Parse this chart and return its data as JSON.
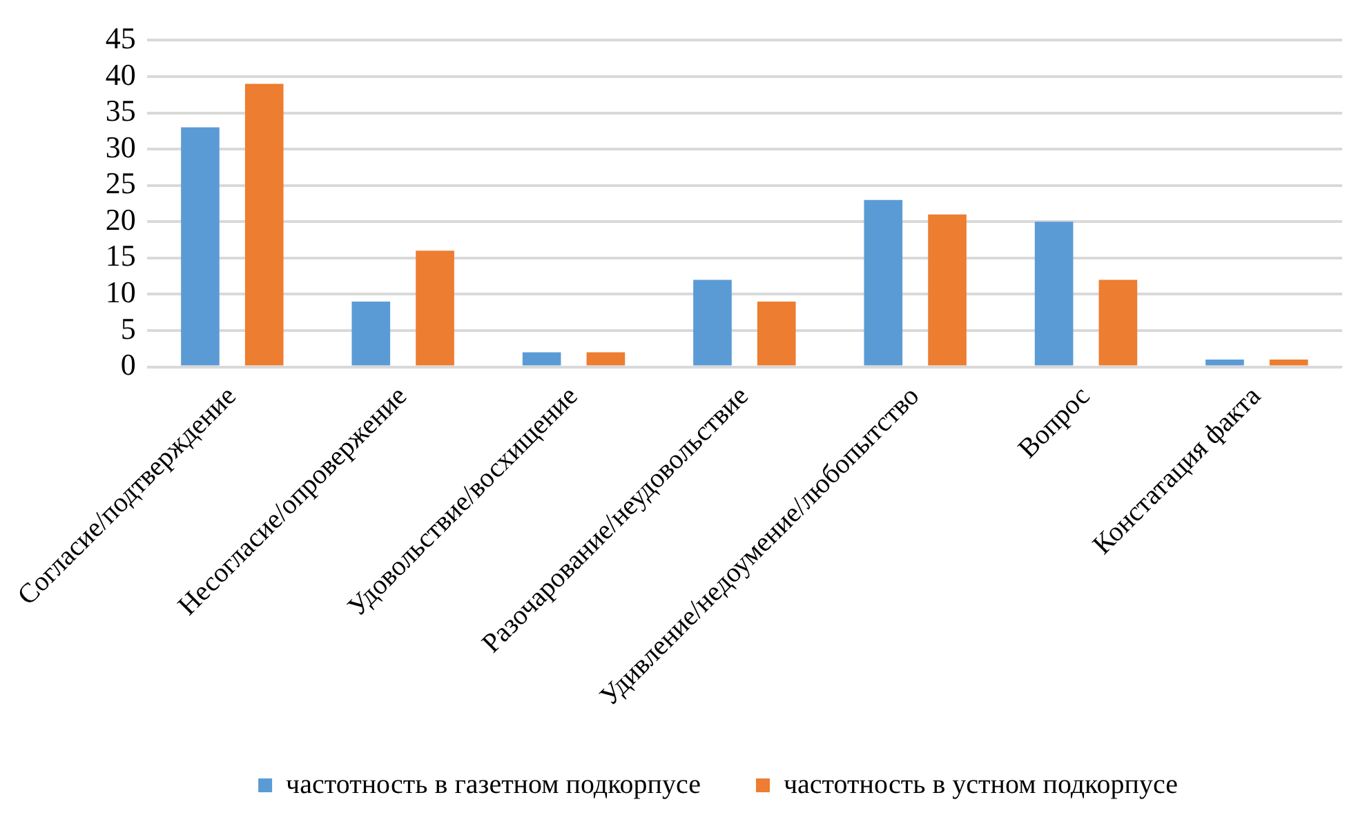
{
  "chart_data": {
    "type": "bar",
    "categories": [
      "Согласие/подтверждение",
      "Несогласие/опровержение",
      "Удовольствие/восхищение",
      "Разочарование/неудовольствие",
      "Удивление/недоумение/любопытство",
      "Вопрос",
      "Констатация факта"
    ],
    "series": [
      {
        "name": "частотность в газетном подкорпусе",
        "color": "#5b9bd5",
        "values": [
          33,
          9,
          2,
          12,
          23,
          20,
          1
        ]
      },
      {
        "name": "частотность в устном подкорпусе",
        "color": "#ed7d31",
        "values": [
          39,
          16,
          2,
          9,
          21,
          12,
          1
        ]
      }
    ],
    "ylim": [
      0,
      45
    ],
    "yticks": [
      0,
      5,
      10,
      15,
      20,
      25,
      30,
      35,
      40,
      45
    ],
    "grid": "y",
    "legend": "bottom"
  }
}
